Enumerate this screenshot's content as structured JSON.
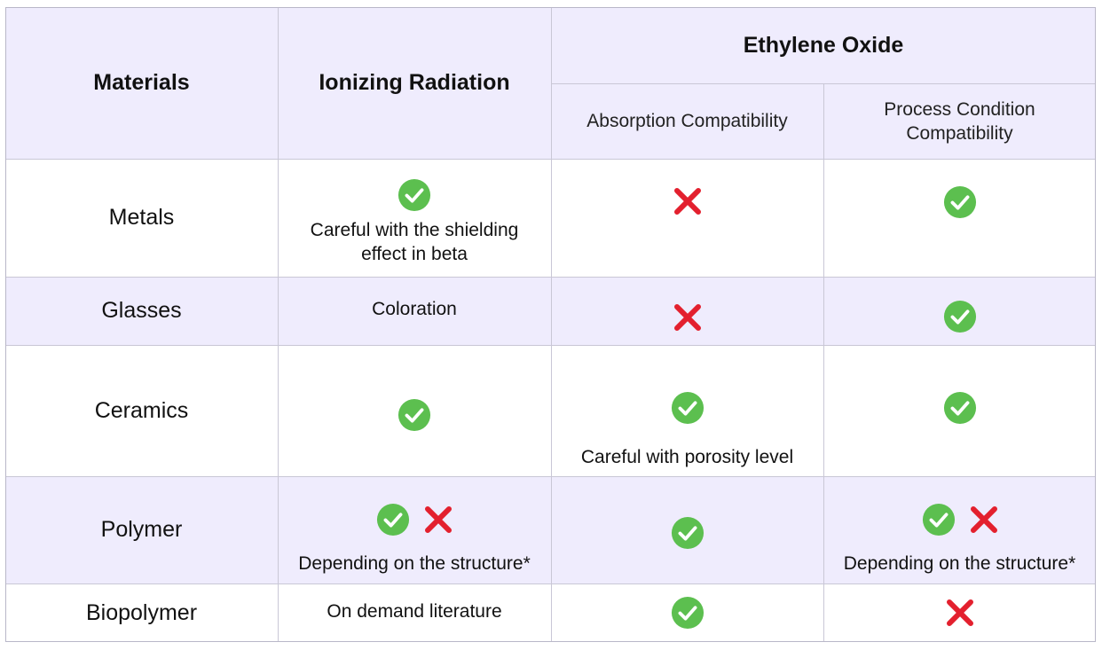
{
  "header": {
    "materials": "Materials",
    "ionizing": "Ionizing Radiation",
    "eto": "Ethylene Oxide",
    "absorption": "Absorption Compatibility",
    "process_line1": "Process Condition",
    "process_line2": "Compatibility"
  },
  "rows": [
    {
      "material": "Metals",
      "ionizing": {
        "icons": [
          "check"
        ],
        "note1": "Careful with the shielding",
        "note2": "effect in beta"
      },
      "absorption": {
        "icons": [
          "cross"
        ]
      },
      "process": {
        "icons": [
          "check"
        ]
      }
    },
    {
      "material": "Glasses",
      "ionizing": {
        "note1": "Coloration"
      },
      "absorption": {
        "icons": [
          "cross"
        ]
      },
      "process": {
        "icons": [
          "check"
        ]
      }
    },
    {
      "material": "Ceramics",
      "ionizing": {
        "icons": [
          "check"
        ]
      },
      "absorption": {
        "icons": [
          "check"
        ],
        "note1": "Careful with porosity level"
      },
      "process": {
        "icons": [
          "check"
        ]
      }
    },
    {
      "material": "Polymer",
      "ionizing": {
        "icons": [
          "check",
          "cross"
        ],
        "note1": "Depending on the structure*"
      },
      "absorption": {
        "icons": [
          "check"
        ]
      },
      "process": {
        "icons": [
          "check",
          "cross"
        ],
        "note1": "Depending on the structure*"
      }
    },
    {
      "material": "Biopolymer",
      "ionizing": {
        "note1": "On demand literature"
      },
      "absorption": {
        "icons": [
          "check"
        ]
      },
      "process": {
        "icons": [
          "cross"
        ]
      }
    }
  ],
  "colors": {
    "check": "#5cbf4f",
    "cross": "#e3202e",
    "header_bg": "#efecfd",
    "grid": "#c9c7d6"
  }
}
